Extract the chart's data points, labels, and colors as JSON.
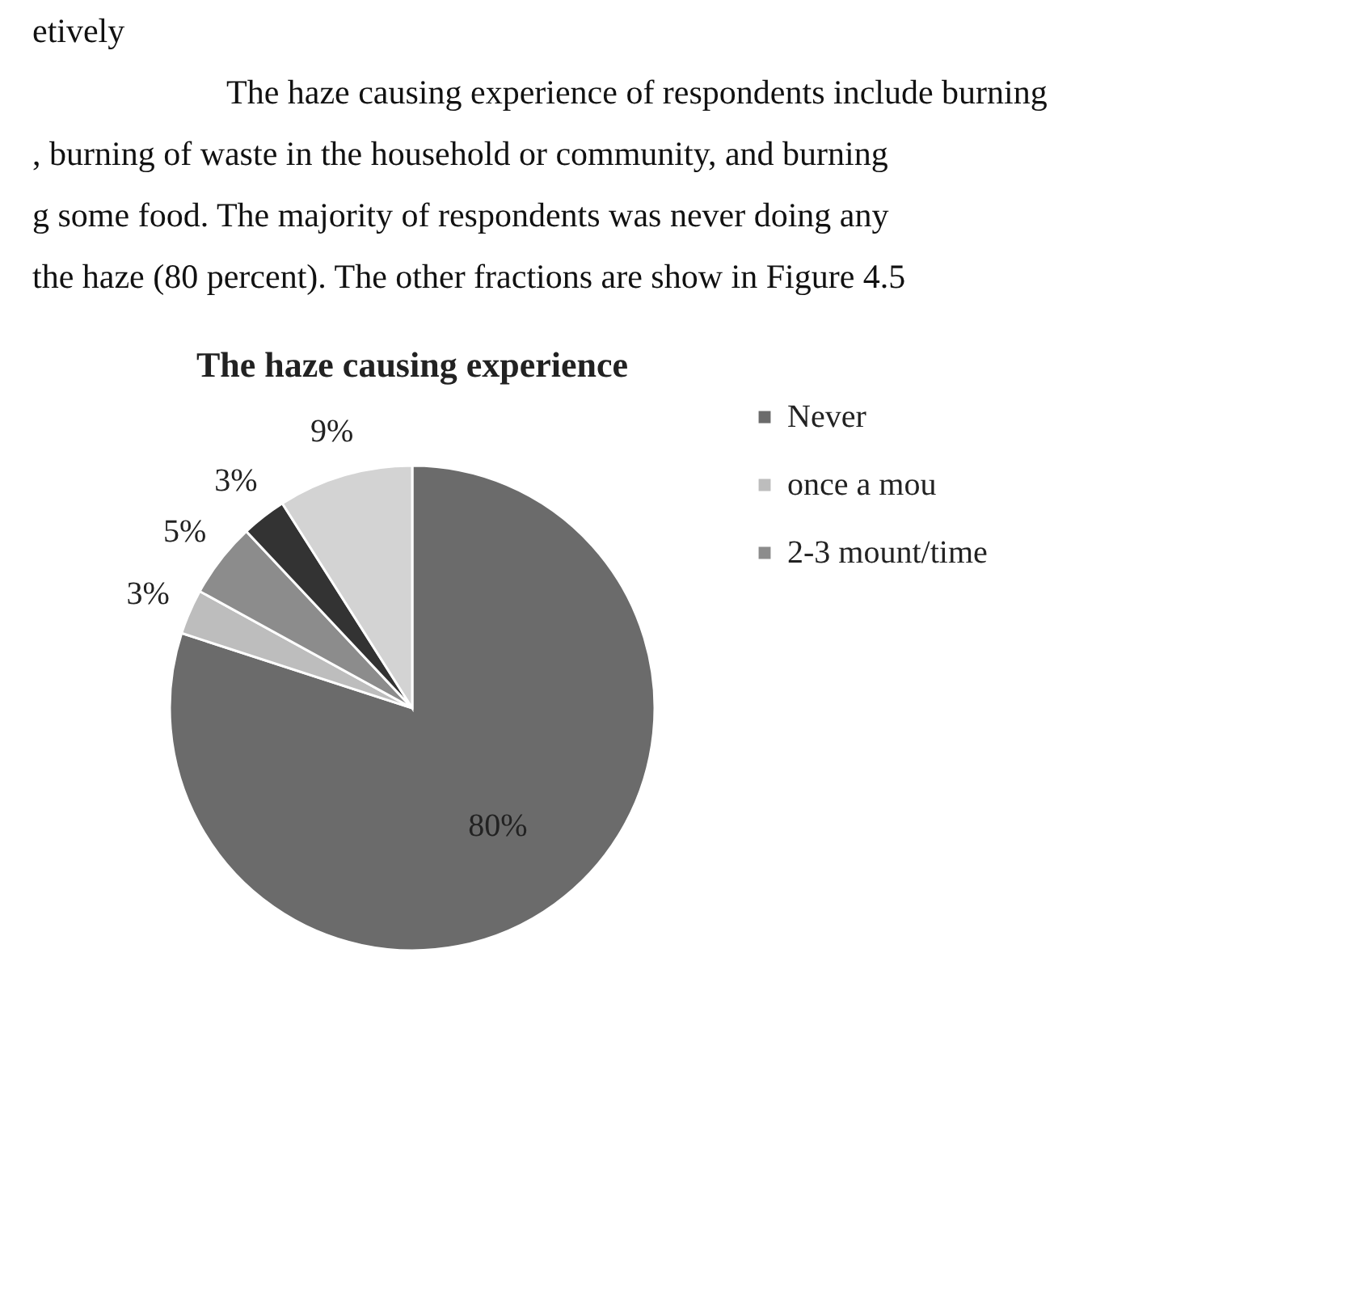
{
  "chart_data": {
    "type": "pie",
    "title": "The haze causing experience",
    "categories": [
      "Never",
      "once a mou",
      "2-3 mount/time",
      null,
      null
    ],
    "values": [
      80,
      3,
      5,
      3,
      9
    ],
    "colors": [
      "#6b6b6b",
      "#bdbdbd",
      "#8c8c8c",
      "#333333",
      "#d3d3d3"
    ],
    "value_labels": [
      "80%",
      "3%",
      "5%",
      "3%",
      "9%"
    ],
    "legend": "right",
    "annotations": [
      "etively",
      "The haze causing experience of respondents include burning",
      ", burning of waste in the household or community, and burning",
      "g some food. The majority of respondents was never doing any",
      "the haze (80 percent). The other fractions are show in Figure 4.5"
    ]
  }
}
